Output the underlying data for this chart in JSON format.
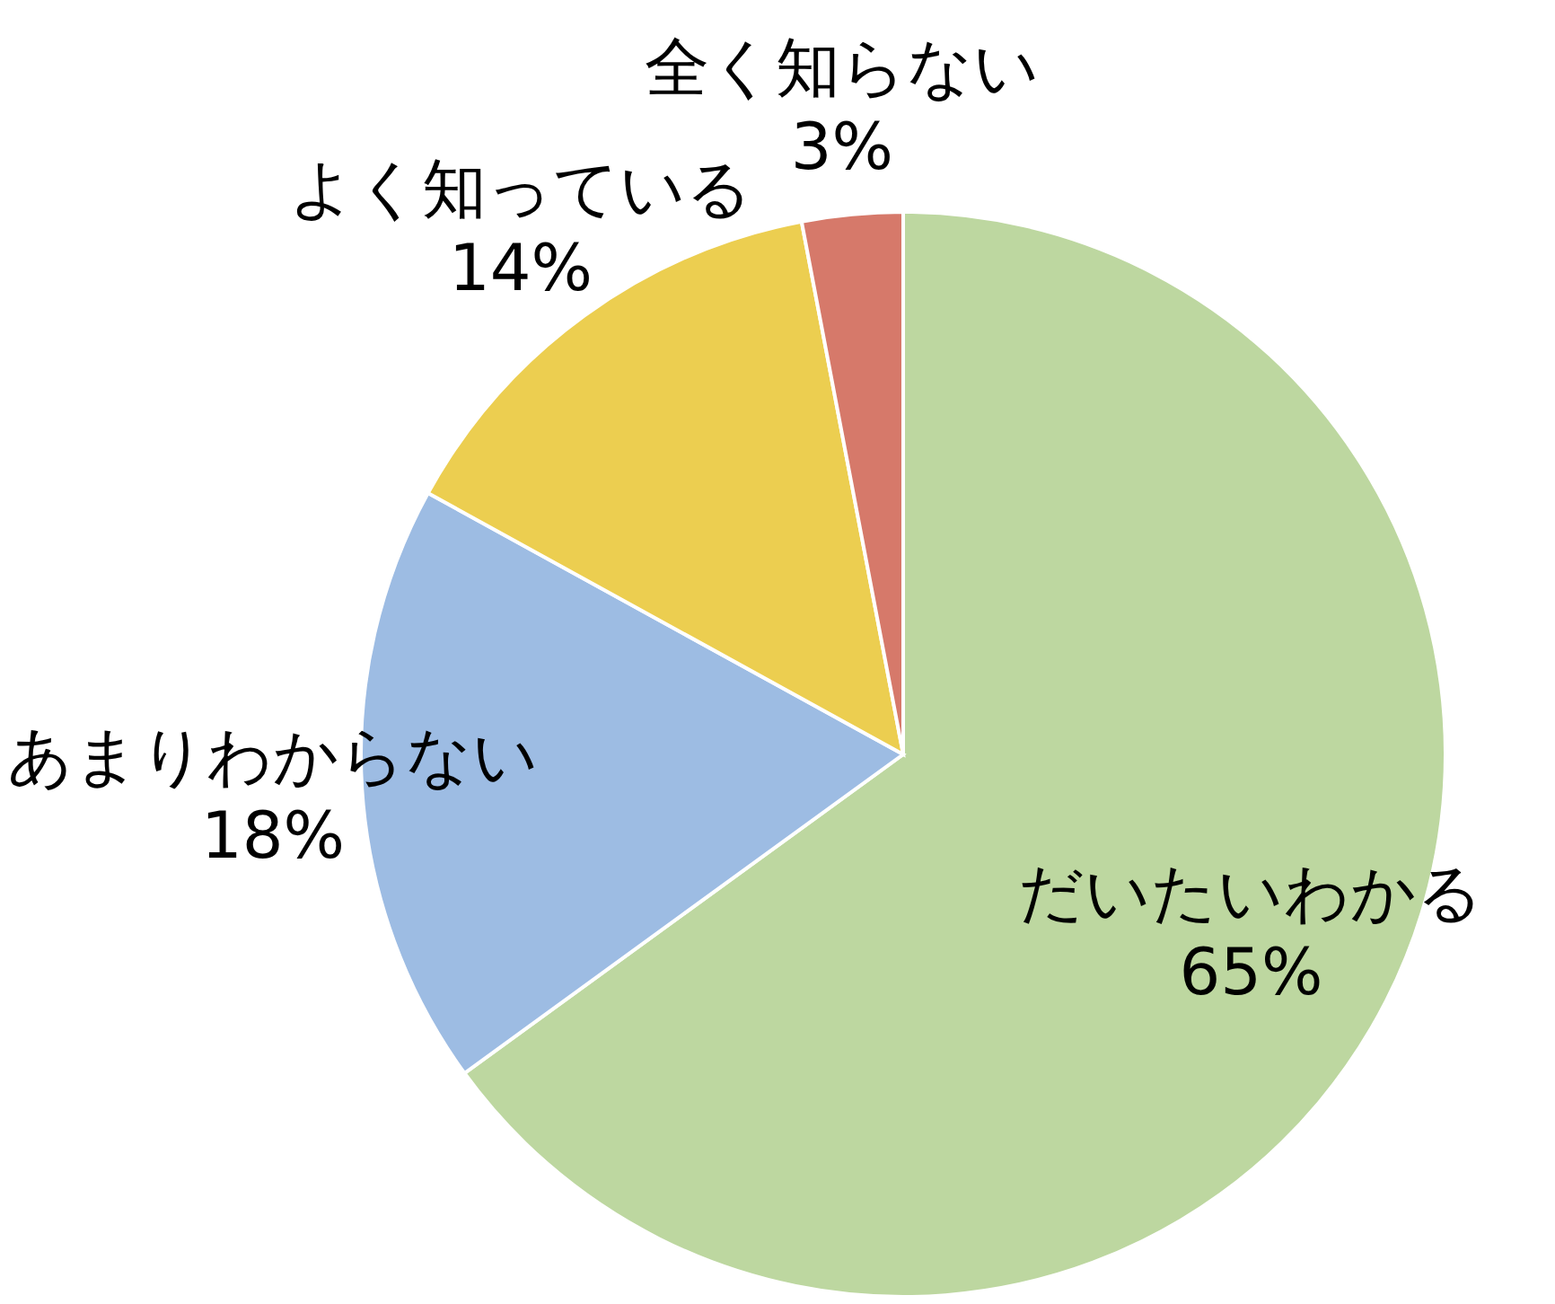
{
  "chart_data": {
    "type": "pie",
    "categories": [
      "だいたいわかる",
      "あまりわからない",
      "よく知っている",
      "全く知らない"
    ],
    "values": [
      65,
      18,
      14,
      3
    ],
    "value_labels": [
      "65%",
      "18%",
      "14%",
      "3%"
    ],
    "colors": [
      "#bdd7a0",
      "#9dbce3",
      "#ecce50",
      "#d6796a"
    ]
  }
}
